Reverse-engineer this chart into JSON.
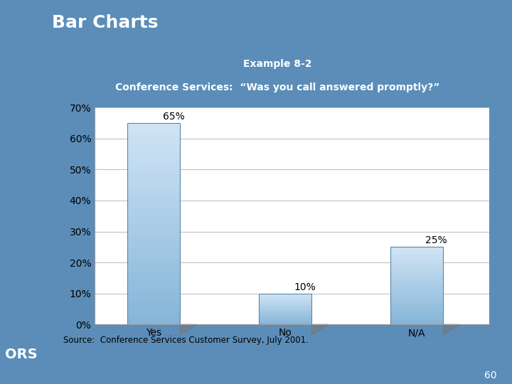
{
  "title_main": "Bar Charts",
  "subtitle1": "Example 8-2",
  "subtitle2": "Conference Services:  “Was you call answered promptly?”",
  "categories": [
    "Yes",
    "No",
    "N/A"
  ],
  "values": [
    65,
    10,
    25
  ],
  "value_labels": [
    "65%",
    "10%",
    "25%"
  ],
  "bar_color_top": "#d0e4f5",
  "bar_color_bottom": "#85b5d8",
  "ylim": [
    0,
    70
  ],
  "yticks": [
    0,
    10,
    20,
    30,
    40,
    50,
    60,
    70
  ],
  "ytick_labels": [
    "0%",
    "10%",
    "20%",
    "30%",
    "40%",
    "50%",
    "60%",
    "70%"
  ],
  "source_text": "Source:  Conference Services Customer Survey, July 2001.",
  "page_number": "60",
  "bg_color": "#5b8db8",
  "chart_bg": "#ffffff",
  "grid_color": "#bbbbbb",
  "bar_edge_color": "#5588aa",
  "tick_label_fontsize": 10,
  "bar_label_fontsize": 10,
  "title_fontsize": 18,
  "subtitle_fontsize": 10
}
